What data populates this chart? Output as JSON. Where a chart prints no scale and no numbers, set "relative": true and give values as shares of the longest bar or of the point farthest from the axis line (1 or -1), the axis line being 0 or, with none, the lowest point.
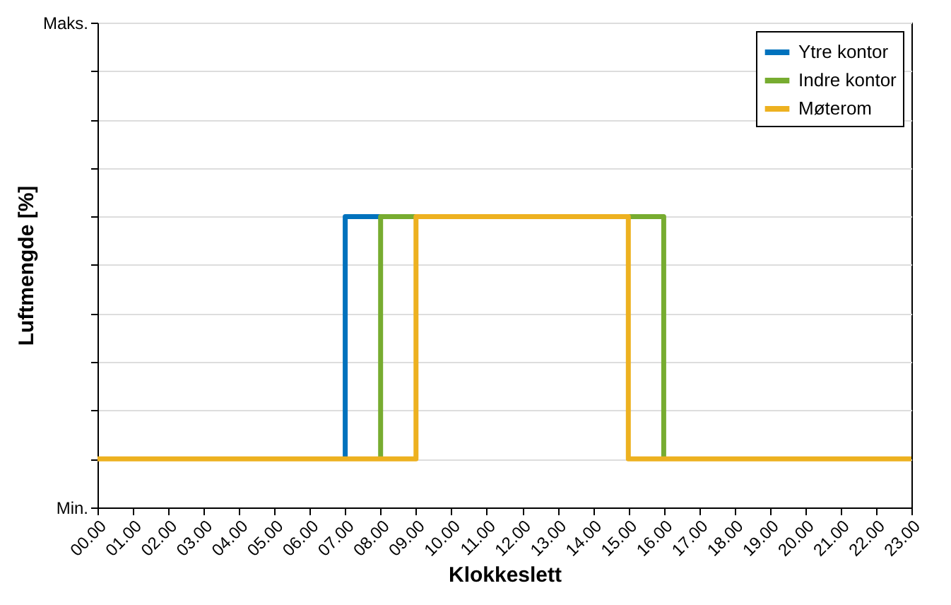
{
  "chart_data": {
    "type": "step",
    "xlabel": "Klokkeslett",
    "ylabel": "Luftmengde [%]",
    "x": [
      0,
      1,
      2,
      3,
      4,
      5,
      6,
      7,
      8,
      9,
      10,
      11,
      12,
      13,
      14,
      15,
      16,
      17,
      18,
      19,
      20,
      21,
      22,
      23
    ],
    "series": [
      {
        "name": "Ytre kontor",
        "color": "#0072bd",
        "x": [
          7,
          7,
          8
        ],
        "values": [
          0.167,
          1,
          1
        ]
      },
      {
        "name": "Indre kontor",
        "color": "#77ac30",
        "x": [
          8,
          8,
          16,
          16
        ],
        "values": [
          0.167,
          1,
          1,
          0.167
        ]
      },
      {
        "name": "Møterom",
        "color": "#edb120",
        "values": [
          0.167,
          0.167,
          0.167,
          0.167,
          0.167,
          0.167,
          0.167,
          0.167,
          0.167,
          1,
          1,
          1,
          1,
          1,
          1,
          0.167,
          0.167,
          0.167,
          0.167,
          0.167,
          0.167,
          0.167,
          0.167,
          0.167
        ]
      }
    ],
    "xlim": [
      0,
      23
    ],
    "xticks": [
      {
        "value": 0,
        "label": "00.00"
      },
      {
        "value": 1,
        "label": "01.00"
      },
      {
        "value": 2,
        "label": "02.00"
      },
      {
        "value": 3,
        "label": "03.00"
      },
      {
        "value": 4,
        "label": "04.00"
      },
      {
        "value": 5,
        "label": "05.00"
      },
      {
        "value": 6,
        "label": "06.00"
      },
      {
        "value": 7,
        "label": "07.00"
      },
      {
        "value": 8,
        "label": "08.00"
      },
      {
        "value": 9,
        "label": "09.00"
      },
      {
        "value": 10,
        "label": "10.00"
      },
      {
        "value": 11,
        "label": "11.00"
      },
      {
        "value": 12,
        "label": "12.00"
      },
      {
        "value": 13,
        "label": "13.00"
      },
      {
        "value": 14,
        "label": "14.00"
      },
      {
        "value": 15,
        "label": "15.00"
      },
      {
        "value": 16,
        "label": "16.00"
      },
      {
        "value": 17,
        "label": "17.00"
      },
      {
        "value": 18,
        "label": "18.00"
      },
      {
        "value": 19,
        "label": "19.00"
      },
      {
        "value": 20,
        "label": "20.00"
      },
      {
        "value": 21,
        "label": "21.00"
      },
      {
        "value": 22,
        "label": "22.00"
      },
      {
        "value": 23,
        "label": "23.00"
      }
    ],
    "relative": true,
    "ylim": [
      0,
      1.667
    ],
    "annotations": [
      "Maks.",
      "Min."
    ],
    "grid": "y",
    "legend": "top right",
    "line_style": "solid",
    "marker": "none"
  }
}
